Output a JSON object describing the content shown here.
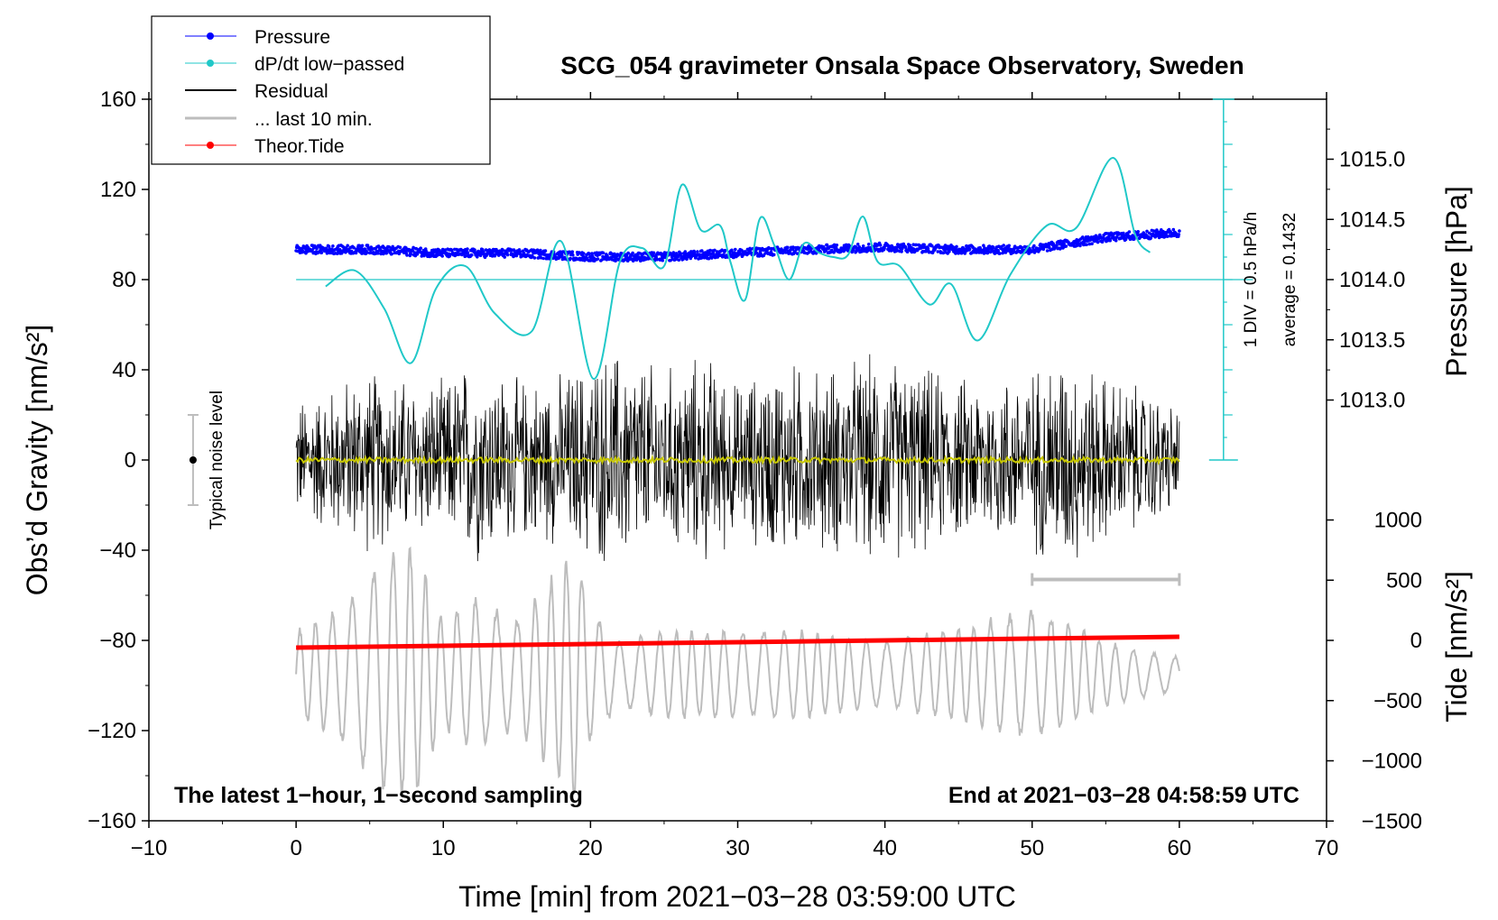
{
  "colors": {
    "pressure": "#0000ff",
    "dpdt": "#20c8c8",
    "residual": "#000000",
    "last10": "#bdbdbd",
    "tide": "#ff0000",
    "residual_mean": "#c8c800",
    "noise_bar": "#bdbdbd"
  },
  "chart_data": {
    "type": "line",
    "title": "SCG_054 gravimeter Onsala Space Observatory, Sweden",
    "xlabel": "Time [min] from 2021−03−28 03:59:00 UTC",
    "ylabel_left": "Obs’d Gravity [nm/s²]",
    "ylabel_right_top": "Pressure [hPa]",
    "ylabel_right_bottom": "Tide [nm/s²]",
    "xlim": [
      -10,
      70
    ],
    "ylim_left": [
      -160,
      160
    ],
    "pressure_range": [
      1013.0,
      1015.0
    ],
    "tide_range": [
      -1500,
      1000
    ],
    "x_ticks": [
      "−10",
      "0",
      "10",
      "20",
      "30",
      "40",
      "50",
      "60",
      "70"
    ],
    "y_ticks_left": [
      "160",
      "120",
      "80",
      "40",
      "0",
      "−40",
      "−80",
      "−120",
      "−160"
    ],
    "y_ticks_pressure": [
      "1015.0",
      "1014.5",
      "1014.0",
      "1013.5",
      "1013.0"
    ],
    "y_ticks_tide": [
      "1000",
      "500",
      "0",
      "−500",
      "−1000",
      "−1500"
    ],
    "bottom_left_note": "The latest 1−hour, 1−second sampling",
    "bottom_right_note": "End at 2021−03−28 04:58:59 UTC",
    "noise_label": "Typical noise level",
    "noise_level": 20,
    "dpdt_scale_text": "1 DIV = 0.5 hPa/h",
    "pressure_average_text": "average = 0.1432",
    "last10_bar_range_min": [
      50,
      60
    ],
    "legend": [
      "Pressure",
      "dP/dt low−passed",
      "Residual",
      "... last 10 min.",
      "Theor.Tide"
    ],
    "series": [
      {
        "name": "Pressure",
        "axis": "pressure_hPa",
        "x": [
          0,
          5,
          10,
          15,
          20,
          25,
          30,
          35,
          40,
          45,
          50,
          55,
          60
        ],
        "values": [
          1014.25,
          1014.25,
          1014.22,
          1014.22,
          1014.19,
          1014.19,
          1014.22,
          1014.25,
          1014.27,
          1014.25,
          1014.25,
          1014.35,
          1014.39
        ]
      },
      {
        "name": "dP/dt low−passed",
        "axis": "left",
        "x": [
          2,
          4,
          6,
          7.8,
          9.5,
          11.5,
          13.5,
          16,
          18,
          20.2,
          22,
          23.5,
          25,
          26.2,
          27.5,
          28.8,
          29.5,
          30.5,
          31.5,
          32.5,
          33.5,
          34.5,
          35.5,
          36.5,
          37.5,
          38.5,
          39.5,
          41,
          43,
          44.5,
          46.3,
          48.5,
          51,
          53,
          55.5,
          57,
          58
        ],
        "values": [
          77,
          84,
          67,
          43,
          76,
          86,
          65,
          57,
          97,
          36,
          88,
          94,
          86,
          122,
          102,
          104,
          88,
          71,
          107,
          95,
          80,
          96,
          92,
          90,
          91,
          108,
          88,
          86,
          69,
          78,
          53,
          82,
          104,
          103,
          134,
          100,
          92
        ]
      },
      {
        "name": "Residual",
        "axis": "left",
        "x_range": [
          0,
          60
        ],
        "envelope_x": [
          0,
          5,
          8,
          10,
          12,
          15,
          18,
          20,
          22,
          25,
          28,
          30,
          33,
          35,
          40,
          45,
          50,
          52,
          55,
          58,
          60
        ],
        "envelope_amplitude": [
          30,
          45,
          40,
          38,
          52,
          40,
          42,
          50,
          55,
          45,
          52,
          38,
          50,
          45,
          52,
          40,
          45,
          55,
          42,
          35,
          25
        ]
      },
      {
        "name": "Residual mean",
        "axis": "left",
        "x": [
          0,
          60
        ],
        "values": [
          0,
          0
        ]
      },
      {
        "name": "... last 10 min.",
        "axis": "left",
        "x_range": [
          0,
          60
        ],
        "envelope_x": [
          0,
          3,
          6,
          8,
          10,
          12,
          15,
          18,
          19,
          20,
          22,
          25,
          30,
          35,
          40,
          45,
          50,
          52,
          55,
          58,
          60
        ],
        "envelope_amplitude": [
          20,
          30,
          55,
          60,
          25,
          35,
          25,
          50,
          60,
          30,
          15,
          20,
          20,
          20,
          15,
          22,
          30,
          25,
          15,
          10,
          8
        ],
        "center": -95
      },
      {
        "name": "Theor.Tide",
        "axis": "tide",
        "x": [
          0,
          10,
          20,
          30,
          40,
          50,
          60
        ],
        "values": [
          -60,
          -45,
          -30,
          -15,
          0,
          15,
          30
        ]
      }
    ]
  }
}
